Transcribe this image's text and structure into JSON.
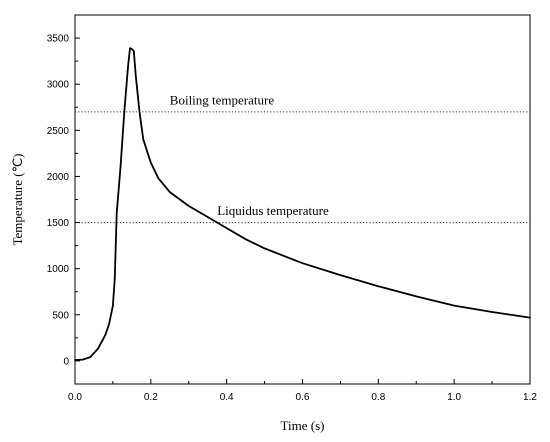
{
  "chart_data": {
    "type": "line",
    "xlabel": "Time (s)",
    "ylabel": "Temperature (℃)",
    "xlim": [
      0.0,
      1.2
    ],
    "ylim": [
      -250,
      3750
    ],
    "x_ticks": [
      0.0,
      0.2,
      0.4,
      0.6,
      0.8,
      1.0,
      1.2
    ],
    "x_tick_labels": [
      "0.0",
      "0.2",
      "0.4",
      "0.6",
      "0.8",
      "1.0",
      "1.2"
    ],
    "y_ticks": [
      0,
      500,
      1000,
      1500,
      2000,
      2500,
      3000,
      3500
    ],
    "y_tick_labels": [
      "0",
      "500",
      "1000",
      "1500",
      "2000",
      "2500",
      "3000",
      "3500"
    ],
    "grid": false,
    "legend": "none",
    "series": [
      {
        "color": "#000000",
        "x": [
          0.0,
          0.02,
          0.04,
          0.06,
          0.08,
          0.09,
          0.1,
          0.105,
          0.11,
          0.12,
          0.13,
          0.14,
          0.145,
          0.15,
          0.155,
          0.16,
          0.17,
          0.18,
          0.2,
          0.22,
          0.25,
          0.3,
          0.35,
          0.4,
          0.45,
          0.5,
          0.6,
          0.7,
          0.8,
          0.9,
          1.0,
          1.1,
          1.2
        ],
        "y": [
          10,
          15,
          40,
          130,
          280,
          400,
          600,
          900,
          1600,
          2100,
          2700,
          3200,
          3390,
          3380,
          3360,
          3100,
          2700,
          2400,
          2150,
          1980,
          1830,
          1680,
          1560,
          1440,
          1320,
          1220,
          1060,
          930,
          810,
          700,
          600,
          530,
          470
        ]
      }
    ],
    "reference_lines": [
      {
        "y": 2700,
        "style": "dotted",
        "label": "Boiling temperature",
        "label_x": 0.25,
        "label_y": 2780
      },
      {
        "y": 1500,
        "style": "dotted",
        "label": "Liquidus temperature",
        "label_x": 0.375,
        "label_y": 1580
      }
    ]
  }
}
